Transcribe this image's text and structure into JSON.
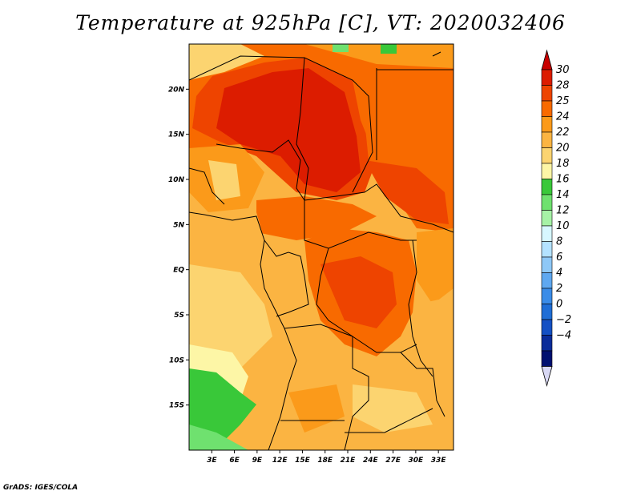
{
  "title": "Temperature at 925hPa [C], VT: 2020032406",
  "credit": "GrADS: IGES/COLA",
  "map": {
    "lon_range": [
      0,
      35
    ],
    "lat_range": [
      -20,
      25
    ],
    "lon_ticks": [
      {
        "lon": 3,
        "label": "3E"
      },
      {
        "lon": 6,
        "label": "6E"
      },
      {
        "lon": 9,
        "label": "9E"
      },
      {
        "lon": 12,
        "label": "12E"
      },
      {
        "lon": 15,
        "label": "15E"
      },
      {
        "lon": 18,
        "label": "18E"
      },
      {
        "lon": 21,
        "label": "21E"
      },
      {
        "lon": 24,
        "label": "24E"
      },
      {
        "lon": 27,
        "label": "27E"
      },
      {
        "lon": 30,
        "label": "30E"
      },
      {
        "lon": 33,
        "label": "33E"
      }
    ],
    "lat_ticks": [
      {
        "lat": 20,
        "label": "20N"
      },
      {
        "lat": 15,
        "label": "15N"
      },
      {
        "lat": 10,
        "label": "10N"
      },
      {
        "lat": 5,
        "label": "5N"
      },
      {
        "lat": 0,
        "label": "EQ"
      },
      {
        "lat": -5,
        "label": "5S"
      },
      {
        "lat": -10,
        "label": "10S"
      },
      {
        "lat": -15,
        "label": "15S"
      }
    ]
  },
  "colorbar": {
    "levels": [
      {
        "label": "30",
        "color": "#dc1c00"
      },
      {
        "label": "28",
        "color": "#ee4400"
      },
      {
        "label": "25",
        "color": "#f86a00"
      },
      {
        "label": "24",
        "color": "#fb9a1a"
      },
      {
        "label": "22",
        "color": "#fbb442"
      },
      {
        "label": "20",
        "color": "#fcd470"
      },
      {
        "label": "18",
        "color": "#fdf6a6"
      },
      {
        "label": "16",
        "color": "#39c839"
      },
      {
        "label": "14",
        "color": "#6fe16f"
      },
      {
        "label": "12",
        "color": "#a6f2a6"
      },
      {
        "label": "10",
        "color": "#d7f7ff"
      },
      {
        "label": "8",
        "color": "#b4e2ff"
      },
      {
        "label": "6",
        "color": "#8ec8f7"
      },
      {
        "label": "4",
        "color": "#5fa8f0"
      },
      {
        "label": "2",
        "color": "#3a8ce8"
      },
      {
        "label": "0",
        "color": "#1f6ed6"
      },
      {
        "label": "−2",
        "color": "#1450c4"
      },
      {
        "label": "−4",
        "color": "#0a2c9a"
      }
    ],
    "top_color": "#c80000",
    "bottom_colors": [
      "#001070",
      "#d8d8f4"
    ]
  }
}
